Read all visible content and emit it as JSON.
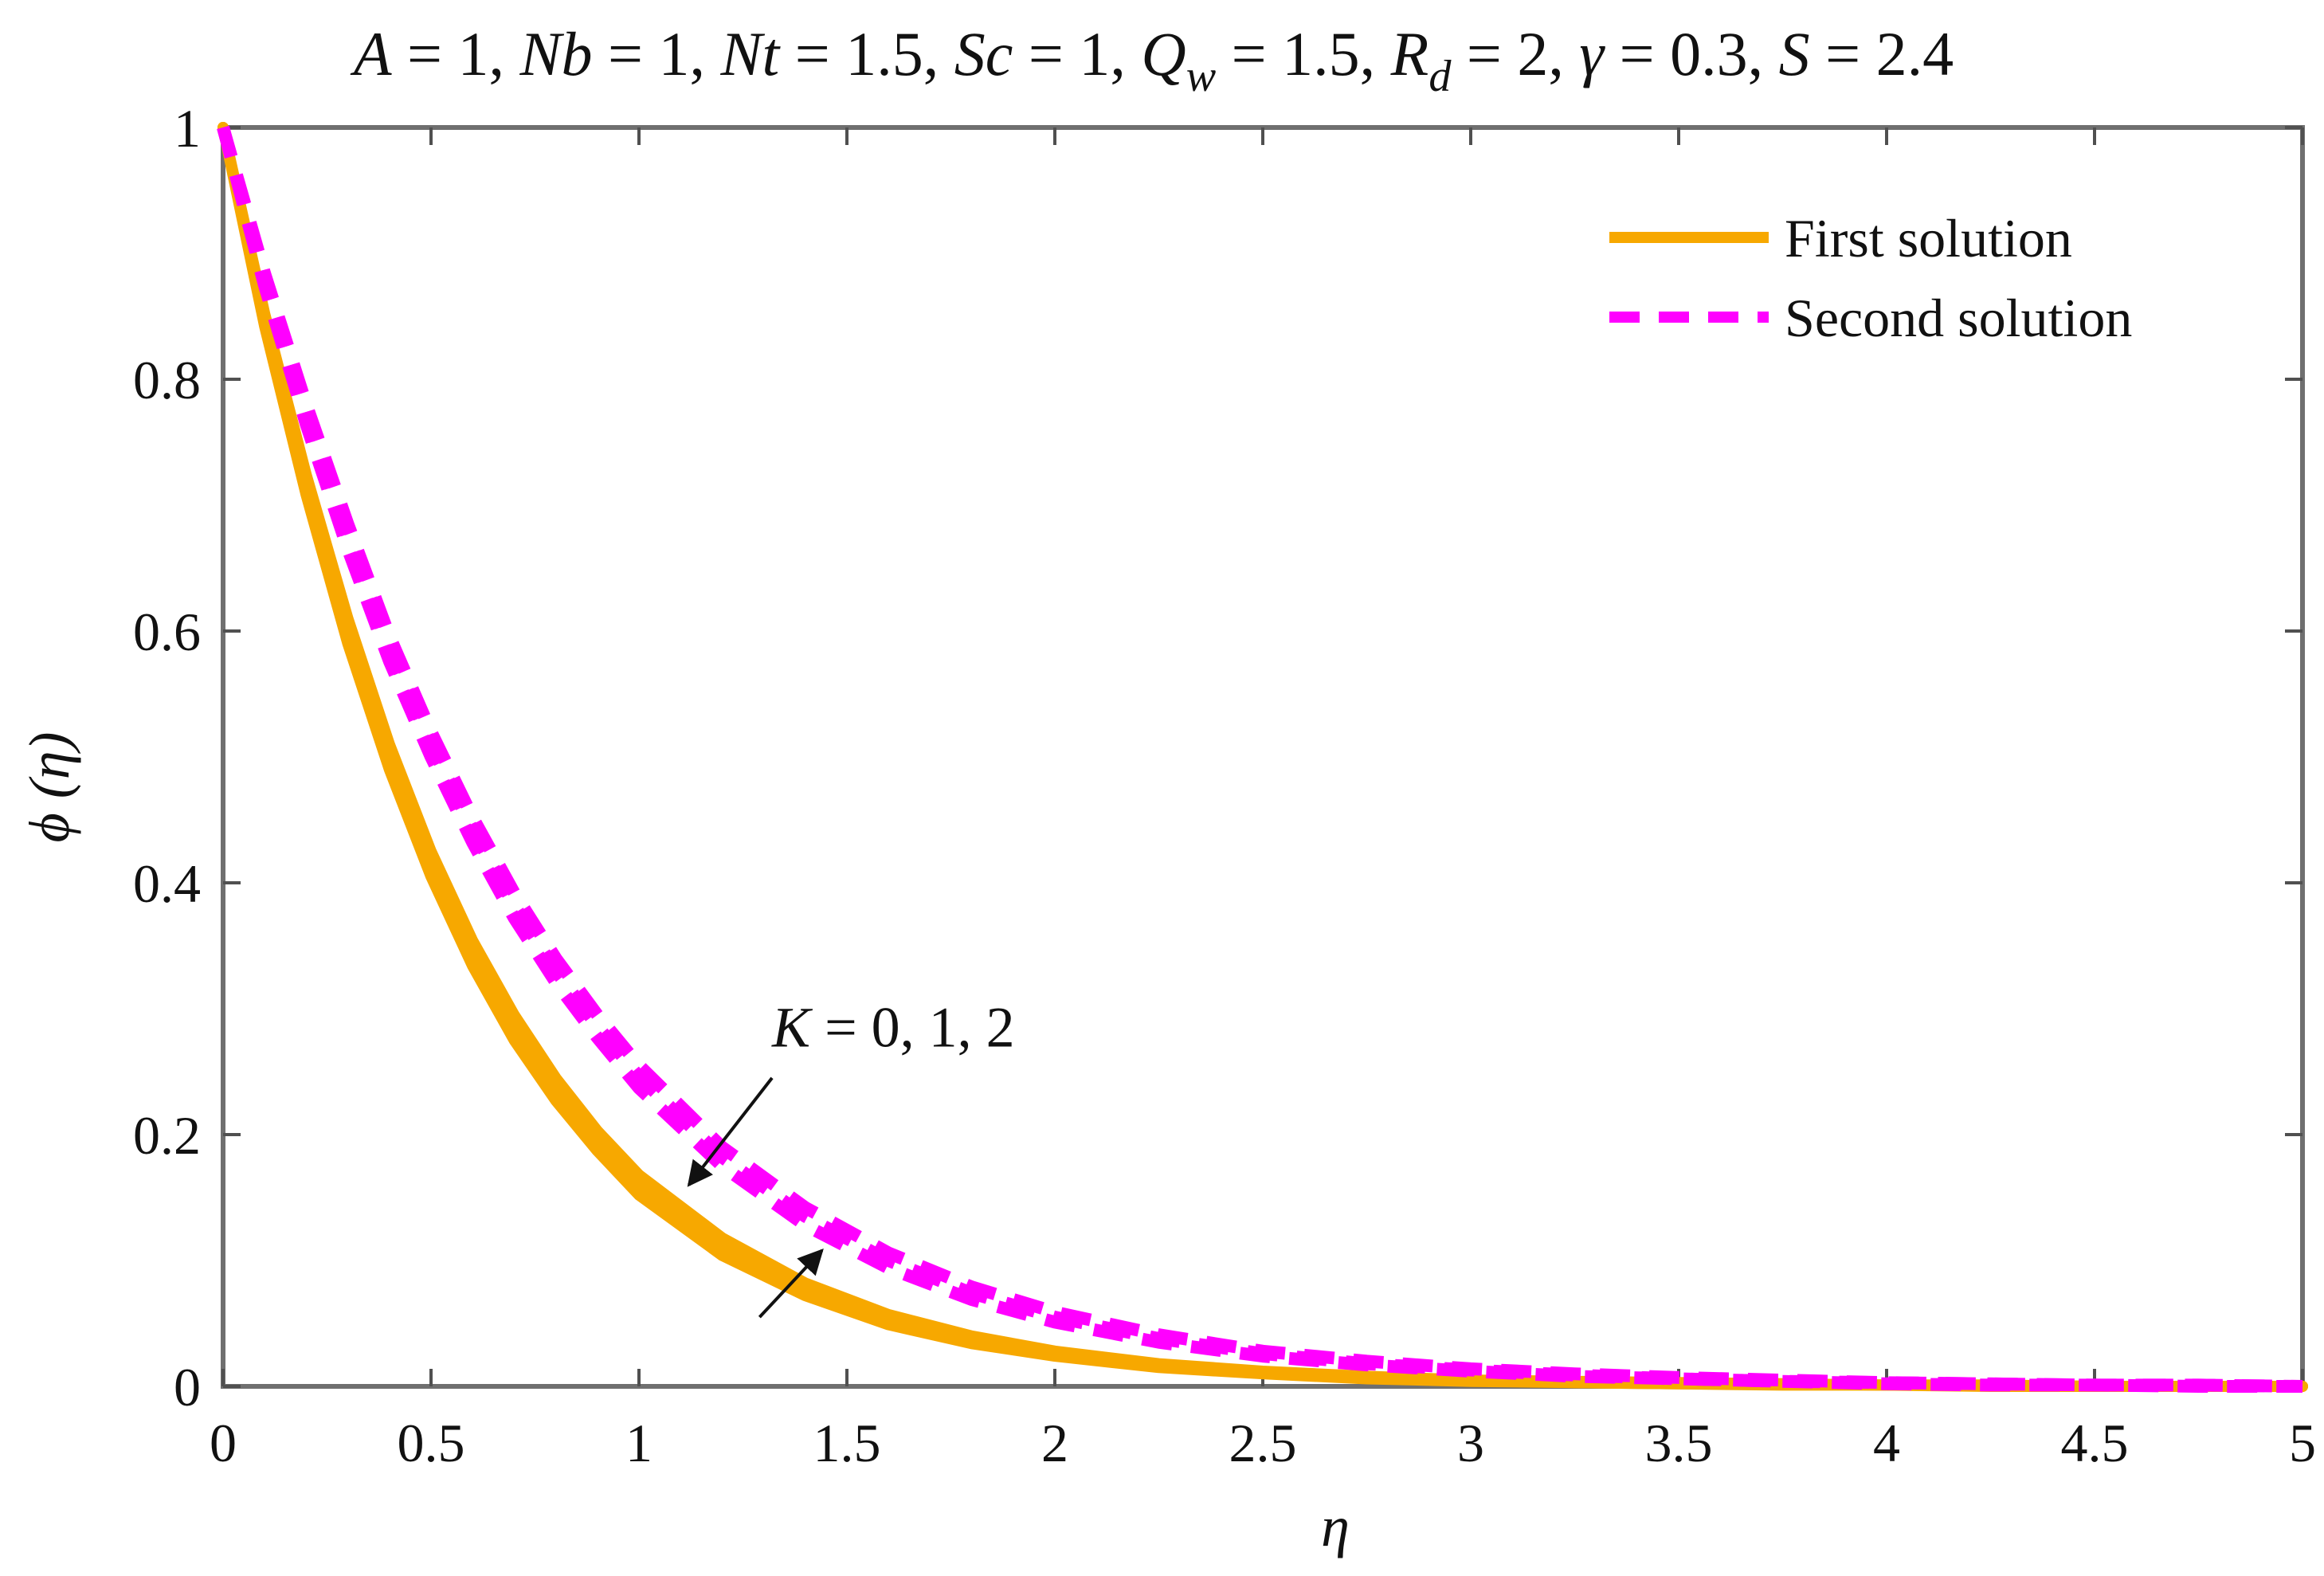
{
  "chart_data": {
    "type": "line",
    "title": "A = 1, Nb = 1, Nt = 1.5, Sc = 1, Qw = 1.5, Rd = 2, γ = 0.3, S = 2.4",
    "title_parts": [
      {
        "text": "A",
        "italic": true
      },
      {
        "text": " = 1, ",
        "italic": false
      },
      {
        "text": "Nb",
        "italic": true
      },
      {
        "text": " = 1, ",
        "italic": false
      },
      {
        "text": "Nt",
        "italic": true
      },
      {
        "text": " = 1.5, ",
        "italic": false
      },
      {
        "text": "Sc",
        "italic": true
      },
      {
        "text": " = 1, ",
        "italic": false
      },
      {
        "text": "Q",
        "italic": true
      },
      {
        "text": "w",
        "italic": true,
        "sub": true
      },
      {
        "text": " = 1.5, ",
        "italic": false
      },
      {
        "text": "R",
        "italic": true
      },
      {
        "text": "d",
        "italic": true,
        "sub": true
      },
      {
        "text": " = 2, ",
        "italic": false
      },
      {
        "text": "γ",
        "italic": true
      },
      {
        "text": " = 0.3, ",
        "italic": false
      },
      {
        "text": "S",
        "italic": true
      },
      {
        "text": " = 2.4",
        "italic": false
      }
    ],
    "xlabel": "η",
    "ylabel": "ϕ (η)",
    "xlim": [
      0,
      5
    ],
    "ylim": [
      0,
      1
    ],
    "xticks": [
      "0",
      "0.5",
      "1",
      "1.5",
      "2",
      "2.5",
      "3",
      "3.5",
      "4",
      "4.5",
      "5"
    ],
    "yticks": [
      "0",
      "0.2",
      "0.4",
      "0.6",
      "0.8",
      "1"
    ],
    "grid": false,
    "legend": {
      "placement": "top-right",
      "entries": [
        "First solution",
        "Second solution"
      ]
    },
    "x": [
      0,
      0.1,
      0.2,
      0.3,
      0.4,
      0.5,
      0.6,
      0.7,
      0.8,
      0.9,
      1.0,
      1.2,
      1.4,
      1.6,
      1.8,
      2.0,
      2.25,
      2.5,
      2.75,
      3.0,
      3.25,
      3.5,
      3.75,
      4.0,
      4.25,
      4.5,
      4.75,
      5.0
    ],
    "series": [
      {
        "name": "First solution",
        "style": "solid",
        "color": "#f7a800",
        "curves": [
          {
            "K": 0,
            "values": [
              1.0,
              0.852,
              0.724,
              0.61,
              0.51,
              0.425,
              0.354,
              0.295,
              0.245,
              0.203,
              0.168,
              0.118,
              0.082,
              0.057,
              0.04,
              0.028,
              0.018,
              0.012,
              0.008,
              0.005,
              0.004,
              0.003,
              0.002,
              0.001,
              0.001,
              0.0,
              0.0,
              0.0
            ]
          },
          {
            "K": 1,
            "values": [
              1.0,
              0.847,
              0.716,
              0.6,
              0.5,
              0.415,
              0.344,
              0.285,
              0.236,
              0.195,
              0.16,
              0.111,
              0.077,
              0.053,
              0.037,
              0.026,
              0.017,
              0.011,
              0.007,
              0.005,
              0.003,
              0.002,
              0.002,
              0.001,
              0.001,
              0.0,
              0.0,
              0.0
            ]
          },
          {
            "K": 2,
            "values": [
              1.0,
              0.842,
              0.708,
              0.59,
              0.49,
              0.405,
              0.334,
              0.275,
              0.227,
              0.187,
              0.152,
              0.104,
              0.072,
              0.049,
              0.034,
              0.024,
              0.015,
              0.01,
              0.006,
              0.004,
              0.003,
              0.002,
              0.001,
              0.001,
              0.0,
              0.0,
              0.0,
              0.0
            ]
          }
        ]
      },
      {
        "name": "Second solution",
        "style": "dashed",
        "color": "#ff00ff",
        "curves": [
          {
            "K": 0,
            "values": [
              1.0,
              0.884,
              0.78,
              0.685,
              0.596,
              0.52,
              0.452,
              0.392,
              0.34,
              0.295,
              0.255,
              0.19,
              0.142,
              0.106,
              0.079,
              0.059,
              0.041,
              0.028,
              0.02,
              0.014,
              0.01,
              0.007,
              0.005,
              0.003,
              0.002,
              0.001,
              0.001,
              0.0
            ]
          },
          {
            "K": 1,
            "values": [
              1.0,
              0.879,
              0.772,
              0.675,
              0.586,
              0.51,
              0.442,
              0.382,
              0.33,
              0.286,
              0.246,
              0.182,
              0.135,
              0.1,
              0.074,
              0.055,
              0.038,
              0.026,
              0.018,
              0.013,
              0.009,
              0.006,
              0.004,
              0.003,
              0.002,
              0.001,
              0.001,
              0.0
            ]
          },
          {
            "K": 2,
            "values": [
              1.0,
              0.874,
              0.764,
              0.665,
              0.576,
              0.5,
              0.432,
              0.372,
              0.321,
              0.277,
              0.237,
              0.175,
              0.128,
              0.094,
              0.069,
              0.051,
              0.035,
              0.024,
              0.017,
              0.012,
              0.008,
              0.006,
              0.004,
              0.002,
              0.001,
              0.001,
              0.0,
              0.0
            ]
          }
        ]
      }
    ],
    "annotations": [
      {
        "text": "K = 0, 1, 2",
        "parts": [
          {
            "text": "K",
            "italic": true
          },
          {
            "text": " = 0, 1, 2",
            "italic": false
          }
        ],
        "x": 1.32,
        "y": 0.27
      }
    ],
    "arrows": [
      {
        "from": [
          1.32,
          0.245
        ],
        "to": [
          1.12,
          0.16
        ]
      },
      {
        "from": [
          1.29,
          0.055
        ],
        "to": [
          1.44,
          0.108
        ]
      }
    ]
  }
}
